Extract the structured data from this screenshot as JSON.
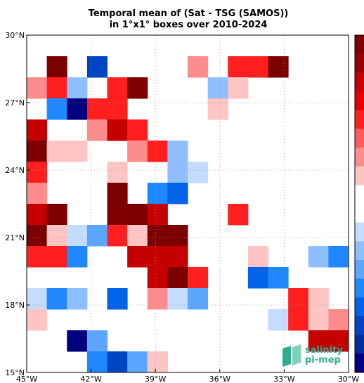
{
  "header": {
    "title_line1": "Temporal mean of (Sat - TSG (SAMOS))",
    "title_line2": "in 1°x1° boxes over 2010-2024"
  },
  "colorbar": {
    "colors_top_to_bottom": [
      "#7d0000",
      "#990000",
      "#c40000",
      "#e60000",
      "#ff1f1f",
      "#ff5c5c",
      "#ff8c8c",
      "#ffc4c4",
      "#ffffff",
      "#ffffff",
      "#c4dcff",
      "#8fbfff",
      "#5ca6ff",
      "#1f88ff",
      "#0064e6",
      "#0044c4",
      "#002c99",
      "#00007d"
    ]
  },
  "map": {
    "lon_ticks": [
      "45°W",
      "42°W",
      "39°W",
      "36°W",
      "33°W",
      "30°W"
    ],
    "lat_ticks": [
      "30°N",
      "27°N",
      "24°N",
      "21°N",
      "18°N",
      "15°N"
    ],
    "lon_range": [
      -45,
      -30
    ],
    "lat_range": [
      15,
      30
    ],
    "grid": "dotted",
    "color_legend": {
      "R4": "#7d0000",
      "R3": "#c40000",
      "R2": "#ff1f1f",
      "R1": "#ff8c8c",
      "R0": "#ffc4c4",
      "B0": "#c4dcff",
      "B1": "#8fbfff",
      "B2": "#5ca6ff",
      "B3": "#1f88ff",
      "B4": "#0064e6",
      "B5": "#0044c4",
      "B6": "#00007d"
    },
    "cells": [
      {
        "lon": -44,
        "lat": 29,
        "c": "R4"
      },
      {
        "lon": -42,
        "lat": 29,
        "c": "B5"
      },
      {
        "lon": -37,
        "lat": 29,
        "c": "R1"
      },
      {
        "lon": -35,
        "lat": 29,
        "c": "R2"
      },
      {
        "lon": -34,
        "lat": 29,
        "c": "R2"
      },
      {
        "lon": -33,
        "lat": 29,
        "c": "R4"
      },
      {
        "lon": -45,
        "lat": 28,
        "c": "R1"
      },
      {
        "lon": -44,
        "lat": 28,
        "c": "R2"
      },
      {
        "lon": -43,
        "lat": 28,
        "c": "B1"
      },
      {
        "lon": -41,
        "lat": 28,
        "c": "R2"
      },
      {
        "lon": -40,
        "lat": 28,
        "c": "R4"
      },
      {
        "lon": -36,
        "lat": 28,
        "c": "B1"
      },
      {
        "lon": -35,
        "lat": 28,
        "c": "R0"
      },
      {
        "lon": -44,
        "lat": 27,
        "c": "B3"
      },
      {
        "lon": -43,
        "lat": 27,
        "c": "B6"
      },
      {
        "lon": -42,
        "lat": 27,
        "c": "R2"
      },
      {
        "lon": -41,
        "lat": 27,
        "c": "R2"
      },
      {
        "lon": -36,
        "lat": 27,
        "c": "R0"
      },
      {
        "lon": -45,
        "lat": 26,
        "c": "R3"
      },
      {
        "lon": -42,
        "lat": 26,
        "c": "R1"
      },
      {
        "lon": -41,
        "lat": 26,
        "c": "R3"
      },
      {
        "lon": -40,
        "lat": 26,
        "c": "R2"
      },
      {
        "lon": -45,
        "lat": 25,
        "c": "R4"
      },
      {
        "lon": -44,
        "lat": 25,
        "c": "R0"
      },
      {
        "lon": -43,
        "lat": 25,
        "c": "R0"
      },
      {
        "lon": -40,
        "lat": 25,
        "c": "R1"
      },
      {
        "lon": -39,
        "lat": 25,
        "c": "R2"
      },
      {
        "lon": -38,
        "lat": 25,
        "c": "B1"
      },
      {
        "lon": -45,
        "lat": 24,
        "c": "R2"
      },
      {
        "lon": -41,
        "lat": 24,
        "c": "R0"
      },
      {
        "lon": -38,
        "lat": 24,
        "c": "B1"
      },
      {
        "lon": -37,
        "lat": 24,
        "c": "B0"
      },
      {
        "lon": -45,
        "lat": 23,
        "c": "R1"
      },
      {
        "lon": -41,
        "lat": 23,
        "c": "R4"
      },
      {
        "lon": -39,
        "lat": 23,
        "c": "B3"
      },
      {
        "lon": -38,
        "lat": 23,
        "c": "B4"
      },
      {
        "lon": -45,
        "lat": 22,
        "c": "R3"
      },
      {
        "lon": -44,
        "lat": 22,
        "c": "R4"
      },
      {
        "lon": -41,
        "lat": 22,
        "c": "R4"
      },
      {
        "lon": -40,
        "lat": 22,
        "c": "R4"
      },
      {
        "lon": -39,
        "lat": 22,
        "c": "R3"
      },
      {
        "lon": -35,
        "lat": 22,
        "c": "R2"
      },
      {
        "lon": -45,
        "lat": 21,
        "c": "R4"
      },
      {
        "lon": -44,
        "lat": 21,
        "c": "R0"
      },
      {
        "lon": -43,
        "lat": 21,
        "c": "B0"
      },
      {
        "lon": -42,
        "lat": 21,
        "c": "B2"
      },
      {
        "lon": -41,
        "lat": 21,
        "c": "R2"
      },
      {
        "lon": -40,
        "lat": 21,
        "c": "R0"
      },
      {
        "lon": -39,
        "lat": 21,
        "c": "R4"
      },
      {
        "lon": -38,
        "lat": 21,
        "c": "R4"
      },
      {
        "lon": -45,
        "lat": 20,
        "c": "R2"
      },
      {
        "lon": -44,
        "lat": 20,
        "c": "R2"
      },
      {
        "lon": -43,
        "lat": 20,
        "c": "B3"
      },
      {
        "lon": -40,
        "lat": 20,
        "c": "R3"
      },
      {
        "lon": -39,
        "lat": 20,
        "c": "R3"
      },
      {
        "lon": -38,
        "lat": 20,
        "c": "R3"
      },
      {
        "lon": -34,
        "lat": 20,
        "c": "R0"
      },
      {
        "lon": -31,
        "lat": 20,
        "c": "B1"
      },
      {
        "lon": -30,
        "lat": 20,
        "c": "B3"
      },
      {
        "lon": -39,
        "lat": 19,
        "c": "R3"
      },
      {
        "lon": -38,
        "lat": 19,
        "c": "R4"
      },
      {
        "lon": -37,
        "lat": 19,
        "c": "R2"
      },
      {
        "lon": -34,
        "lat": 19,
        "c": "B4"
      },
      {
        "lon": -33,
        "lat": 19,
        "c": "B3"
      },
      {
        "lon": -45,
        "lat": 18,
        "c": "B0"
      },
      {
        "lon": -44,
        "lat": 18,
        "c": "B3"
      },
      {
        "lon": -43,
        "lat": 18,
        "c": "B1"
      },
      {
        "lon": -41,
        "lat": 18,
        "c": "B4"
      },
      {
        "lon": -39,
        "lat": 18,
        "c": "R1"
      },
      {
        "lon": -38,
        "lat": 18,
        "c": "B0"
      },
      {
        "lon": -37,
        "lat": 18,
        "c": "B2"
      },
      {
        "lon": -32,
        "lat": 18,
        "c": "R2"
      },
      {
        "lon": -31,
        "lat": 18,
        "c": "R0"
      },
      {
        "lon": -45,
        "lat": 17,
        "c": "R0"
      },
      {
        "lon": -33,
        "lat": 17,
        "c": "B0"
      },
      {
        "lon": -32,
        "lat": 17,
        "c": "R2"
      },
      {
        "lon": -31,
        "lat": 17,
        "c": "R0"
      },
      {
        "lon": -30,
        "lat": 17,
        "c": "R1"
      },
      {
        "lon": -43,
        "lat": 16,
        "c": "B6"
      },
      {
        "lon": -42,
        "lat": 16,
        "c": "B2"
      },
      {
        "lon": -31,
        "lat": 16,
        "c": "R3"
      },
      {
        "lon": -30,
        "lat": 16,
        "c": "R3"
      },
      {
        "lon": -42,
        "lat": 15,
        "c": "B3"
      },
      {
        "lon": -41,
        "lat": 15,
        "c": "B5"
      },
      {
        "lon": -40,
        "lat": 15,
        "c": "B2"
      },
      {
        "lon": -39,
        "lat": 15,
        "c": "R0"
      }
    ]
  },
  "logo": {
    "line1": "salinity",
    "line2": "pi-mep"
  }
}
